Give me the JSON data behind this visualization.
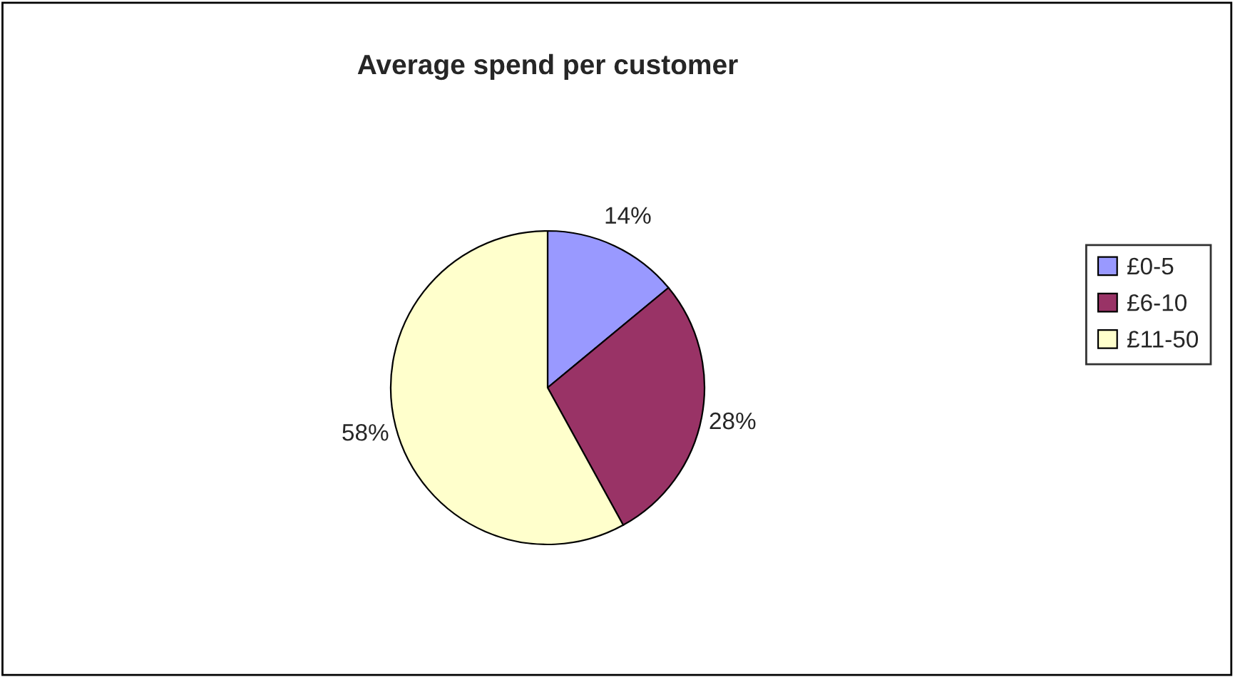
{
  "chart_data": {
    "type": "pie",
    "title": "Average spend per customer",
    "categories": [
      "£0-5",
      "£6-10",
      "£11-50"
    ],
    "values": [
      14,
      28,
      58
    ],
    "value_labels": [
      "14%",
      "28%",
      "58%"
    ],
    "colors": [
      "#9999ff",
      "#993366",
      "#ffffcc"
    ],
    "legend": "right"
  }
}
